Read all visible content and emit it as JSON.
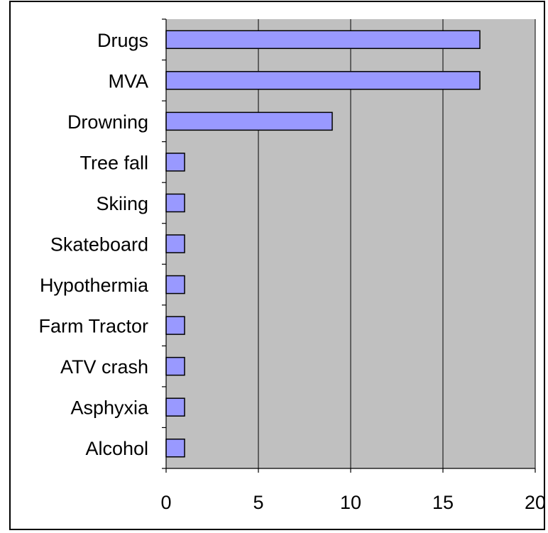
{
  "chart_data": {
    "type": "bar",
    "orientation": "horizontal",
    "title": "",
    "xlabel": "",
    "ylabel": "",
    "categories": [
      "Drugs",
      "MVA",
      "Drowning",
      "Tree fall",
      "Skiing",
      "Skateboard",
      "Hypothermia",
      "Farm Tractor",
      "ATV crash",
      "Asphyxia",
      "Alcohol"
    ],
    "values": [
      17,
      17,
      9,
      1,
      1,
      1,
      1,
      1,
      1,
      1,
      1
    ],
    "xlim": [
      0,
      20
    ],
    "xticks": [
      "0",
      "5",
      "10",
      "15",
      "20"
    ],
    "grid": "vertical",
    "legend": "none",
    "colors": {
      "plot_area": "#C0C0C0",
      "bar_fill": "#9999FF",
      "bar_stroke": "#000000",
      "gridline": "#000000",
      "frame": "#000000"
    }
  }
}
